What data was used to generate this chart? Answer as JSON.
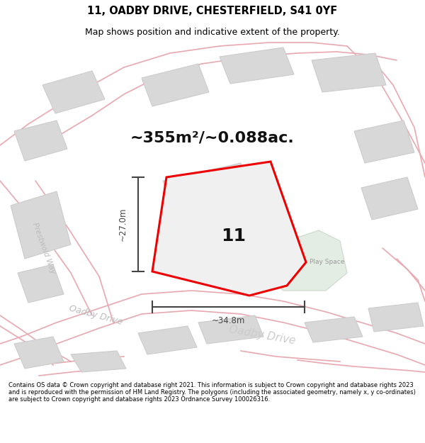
{
  "title": "11, OADBY DRIVE, CHESTERFIELD, S41 0YF",
  "subtitle": "Map shows position and indicative extent of the property.",
  "area_text": "~355m²/~0.088ac.",
  "label_11": "11",
  "label_play": "Play Space",
  "label_oadby": "Oadby Drive",
  "label_prestwold": "Prestwold Way",
  "dim_height": "~27.0m",
  "dim_width": "~34.8m",
  "footer": "Contains OS data © Crown copyright and database right 2021. This information is subject to Crown copyright and database rights 2023 and is reproduced with the permission of HM Land Registry. The polygons (including the associated geometry, namely x, y co-ordinates) are subject to Crown copyright and database rights 2023 Ordnance Survey 100026316.",
  "bg_color": "#f2f2f2",
  "road_color": "#e8a8b0",
  "plot_outline_color": "#ee0000",
  "dim_color": "#444444",
  "building_fill": "#d8d8d8",
  "building_edge": "#cccccc",
  "play_fill": "#e4ede4",
  "play_edge": "#ccd8cc",
  "title_fontsize": 10.5,
  "subtitle_fontsize": 9,
  "area_fontsize": 16,
  "label11_fontsize": 18,
  "road_lw": 1.2,
  "plot_lw": 2.2
}
